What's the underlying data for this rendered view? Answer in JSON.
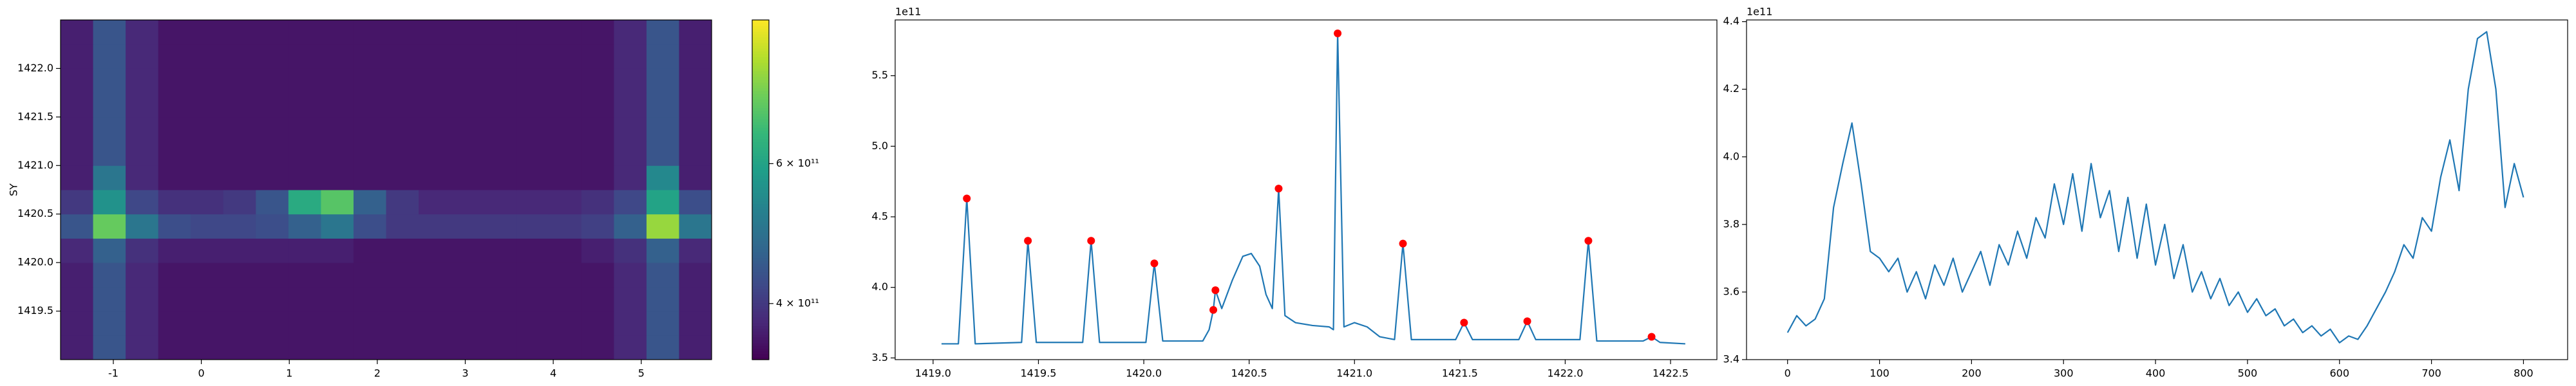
{
  "chart_data": [
    {
      "type": "heatmap",
      "ylabel": "SY",
      "cmap": "viridis",
      "color_scale": "log",
      "clim": [
        340000000000.0,
        910000000000.0
      ],
      "cticks": [
        {
          "value": 400000000000.0,
          "label": "4 × 10¹¹"
        },
        {
          "value": 600000000000.0,
          "label": "6 × 10¹¹"
        }
      ],
      "xlim": [
        -1.6,
        5.8
      ],
      "ylim": [
        1419.0,
        1422.5
      ],
      "xticks": [
        -1,
        0,
        1,
        2,
        3,
        4,
        5
      ],
      "yticks": [
        1419.5,
        {
          "value": 1420,
          "label": "1420.0"
        },
        1420.5,
        {
          "value": 1421,
          "label": "1421.0"
        },
        1421.5,
        {
          "value": 1422,
          "label": "1422.0"
        }
      ],
      "x": [
        -1.415,
        -1.045,
        -0.675,
        -0.305,
        0.065,
        0.435,
        0.805,
        1.175,
        1.545,
        1.915,
        2.285,
        2.655,
        3.025,
        3.395,
        3.765,
        4.135,
        4.505,
        4.875,
        5.245,
        5.615
      ],
      "y": [
        1419.125,
        1419.375,
        1419.625,
        1419.875,
        1420.125,
        1420.375,
        1420.625,
        1420.875,
        1421.125,
        1421.375,
        1421.625,
        1421.875,
        1422.125,
        1422.375
      ],
      "z": [
        [
          370000000000.0,
          440000000000.0,
          380000000000.0,
          360000000000.0,
          360000000000.0,
          360000000000.0,
          360000000000.0,
          360000000000.0,
          360000000000.0,
          360000000000.0,
          360000000000.0,
          360000000000.0,
          360000000000.0,
          360000000000.0,
          360000000000.0,
          360000000000.0,
          360000000000.0,
          380000000000.0,
          440000000000.0,
          370000000000.0
        ],
        [
          370000000000.0,
          440000000000.0,
          380000000000.0,
          360000000000.0,
          360000000000.0,
          360000000000.0,
          360000000000.0,
          360000000000.0,
          360000000000.0,
          360000000000.0,
          360000000000.0,
          360000000000.0,
          360000000000.0,
          360000000000.0,
          360000000000.0,
          360000000000.0,
          360000000000.0,
          380000000000.0,
          440000000000.0,
          370000000000.0
        ],
        [
          370000000000.0,
          440000000000.0,
          380000000000.0,
          360000000000.0,
          360000000000.0,
          360000000000.0,
          360000000000.0,
          360000000000.0,
          360000000000.0,
          360000000000.0,
          360000000000.0,
          360000000000.0,
          360000000000.0,
          360000000000.0,
          360000000000.0,
          360000000000.0,
          360000000000.0,
          380000000000.0,
          440000000000.0,
          370000000000.0
        ],
        [
          370000000000.0,
          440000000000.0,
          380000000000.0,
          360000000000.0,
          360000000000.0,
          360000000000.0,
          360000000000.0,
          360000000000.0,
          360000000000.0,
          360000000000.0,
          360000000000.0,
          360000000000.0,
          360000000000.0,
          360000000000.0,
          360000000000.0,
          360000000000.0,
          360000000000.0,
          380000000000.0,
          440000000000.0,
          370000000000.0
        ],
        [
          380000000000.0,
          460000000000.0,
          390000000000.0,
          370000000000.0,
          370000000000.0,
          370000000000.0,
          370000000000.0,
          370000000000.0,
          370000000000.0,
          360000000000.0,
          360000000000.0,
          360000000000.0,
          360000000000.0,
          360000000000.0,
          360000000000.0,
          360000000000.0,
          370000000000.0,
          390000000000.0,
          460000000000.0,
          380000000000.0
        ],
        [
          440000000000.0,
          720000000000.0,
          500000000000.0,
          430000000000.0,
          420000000000.0,
          420000000000.0,
          430000000000.0,
          460000000000.0,
          500000000000.0,
          430000000000.0,
          400000000000.0,
          400000000000.0,
          400000000000.0,
          400000000000.0,
          400000000000.0,
          400000000000.0,
          410000000000.0,
          460000000000.0,
          780000000000.0,
          500000000000.0
        ],
        [
          400000000000.0,
          560000000000.0,
          420000000000.0,
          390000000000.0,
          390000000000.0,
          400000000000.0,
          440000000000.0,
          620000000000.0,
          700000000000.0,
          460000000000.0,
          400000000000.0,
          380000000000.0,
          380000000000.0,
          380000000000.0,
          380000000000.0,
          380000000000.0,
          390000000000.0,
          420000000000.0,
          600000000000.0,
          430000000000.0
        ],
        [
          370000000000.0,
          500000000000.0,
          380000000000.0,
          360000000000.0,
          360000000000.0,
          360000000000.0,
          360000000000.0,
          360000000000.0,
          360000000000.0,
          360000000000.0,
          360000000000.0,
          360000000000.0,
          360000000000.0,
          360000000000.0,
          360000000000.0,
          360000000000.0,
          360000000000.0,
          380000000000.0,
          540000000000.0,
          370000000000.0
        ],
        [
          370000000000.0,
          440000000000.0,
          380000000000.0,
          360000000000.0,
          360000000000.0,
          360000000000.0,
          360000000000.0,
          360000000000.0,
          360000000000.0,
          360000000000.0,
          360000000000.0,
          360000000000.0,
          360000000000.0,
          360000000000.0,
          360000000000.0,
          360000000000.0,
          360000000000.0,
          380000000000.0,
          440000000000.0,
          370000000000.0
        ],
        [
          370000000000.0,
          440000000000.0,
          380000000000.0,
          360000000000.0,
          360000000000.0,
          360000000000.0,
          360000000000.0,
          360000000000.0,
          360000000000.0,
          360000000000.0,
          360000000000.0,
          360000000000.0,
          360000000000.0,
          360000000000.0,
          360000000000.0,
          360000000000.0,
          360000000000.0,
          380000000000.0,
          440000000000.0,
          370000000000.0
        ],
        [
          370000000000.0,
          440000000000.0,
          380000000000.0,
          360000000000.0,
          360000000000.0,
          360000000000.0,
          360000000000.0,
          360000000000.0,
          360000000000.0,
          360000000000.0,
          360000000000.0,
          360000000000.0,
          360000000000.0,
          360000000000.0,
          360000000000.0,
          360000000000.0,
          360000000000.0,
          380000000000.0,
          440000000000.0,
          370000000000.0
        ],
        [
          370000000000.0,
          440000000000.0,
          380000000000.0,
          360000000000.0,
          360000000000.0,
          360000000000.0,
          360000000000.0,
          360000000000.0,
          360000000000.0,
          360000000000.0,
          360000000000.0,
          360000000000.0,
          360000000000.0,
          360000000000.0,
          360000000000.0,
          360000000000.0,
          360000000000.0,
          380000000000.0,
          440000000000.0,
          370000000000.0
        ],
        [
          370000000000.0,
          440000000000.0,
          380000000000.0,
          360000000000.0,
          360000000000.0,
          360000000000.0,
          360000000000.0,
          360000000000.0,
          360000000000.0,
          360000000000.0,
          360000000000.0,
          360000000000.0,
          360000000000.0,
          360000000000.0,
          360000000000.0,
          360000000000.0,
          360000000000.0,
          380000000000.0,
          440000000000.0,
          370000000000.0
        ],
        [
          370000000000.0,
          440000000000.0,
          380000000000.0,
          360000000000.0,
          360000000000.0,
          360000000000.0,
          360000000000.0,
          360000000000.0,
          360000000000.0,
          360000000000.0,
          360000000000.0,
          360000000000.0,
          360000000000.0,
          360000000000.0,
          360000000000.0,
          360000000000.0,
          360000000000.0,
          380000000000.0,
          440000000000.0,
          370000000000.0
        ]
      ]
    },
    {
      "type": "line",
      "offset_label": "1e11",
      "xlim": [
        1418.82,
        1422.72
      ],
      "ylim": [
        3.488,
        5.895
      ],
      "xticks": [
        {
          "value": 1419,
          "label": "1419.0"
        },
        1419.5,
        {
          "value": 1420,
          "label": "1420.0"
        },
        1420.5,
        {
          "value": 1421,
          "label": "1421.0"
        },
        1421.5,
        {
          "value": 1422,
          "label": "1422.0"
        },
        1422.5
      ],
      "yticks": [
        3.5,
        {
          "value": 4,
          "label": "4.0"
        },
        4.5,
        {
          "value": 5,
          "label": "5.0"
        },
        5.5
      ],
      "x": [
        1419.04,
        1419.12,
        1419.16,
        1419.2,
        1419.42,
        1419.45,
        1419.49,
        1419.71,
        1419.75,
        1419.79,
        1420.01,
        1420.05,
        1420.09,
        1420.28,
        1420.31,
        1420.33,
        1420.34,
        1420.37,
        1420.42,
        1420.47,
        1420.51,
        1420.55,
        1420.58,
        1420.61,
        1420.64,
        1420.67,
        1420.72,
        1420.8,
        1420.88,
        1420.9,
        1420.92,
        1420.95,
        1421.0,
        1421.06,
        1421.12,
        1421.19,
        1421.23,
        1421.27,
        1421.48,
        1421.52,
        1421.56,
        1421.78,
        1421.82,
        1421.86,
        1422.07,
        1422.11,
        1422.15,
        1422.37,
        1422.41,
        1422.45,
        1422.57
      ],
      "series": [
        {
          "type": "line",
          "color": "#1f77b4",
          "values": [
            3.6,
            3.6,
            4.63,
            3.6,
            3.61,
            4.33,
            3.61,
            3.61,
            4.33,
            3.61,
            3.61,
            4.17,
            3.62,
            3.62,
            3.7,
            3.84,
            3.98,
            3.85,
            4.05,
            4.22,
            4.24,
            4.15,
            3.95,
            3.85,
            4.7,
            3.8,
            3.75,
            3.73,
            3.72,
            3.7,
            5.8,
            3.72,
            3.75,
            3.72,
            3.65,
            3.63,
            4.31,
            3.63,
            3.63,
            3.75,
            3.63,
            3.63,
            3.76,
            3.63,
            3.63,
            4.33,
            3.62,
            3.62,
            3.65,
            3.61,
            3.6
          ]
        },
        {
          "type": "scatter",
          "color": "#ff0000",
          "x": [
            1419.16,
            1419.45,
            1419.75,
            1420.05,
            1420.33,
            1420.34,
            1420.64,
            1420.92,
            1421.23,
            1421.52,
            1421.82,
            1422.11,
            1422.41
          ],
          "values": [
            4.63,
            4.33,
            4.33,
            4.17,
            3.84,
            3.98,
            4.7,
            5.8,
            4.31,
            3.75,
            3.76,
            4.33,
            3.65
          ]
        }
      ]
    },
    {
      "type": "line",
      "offset_label": "1e11",
      "xlim": [
        -44.6,
        848
      ],
      "ylim": [
        3.4,
        4.405
      ],
      "xticks": [
        0,
        100,
        200,
        300,
        400,
        500,
        600,
        700,
        800
      ],
      "yticks": [
        3.4,
        3.6,
        3.8,
        {
          "value": 4,
          "label": "4.0"
        },
        4.2,
        4.4
      ],
      "x": [
        0,
        10,
        20,
        30,
        40,
        50,
        60,
        70,
        80,
        90,
        100,
        110,
        120,
        130,
        140,
        150,
        160,
        170,
        180,
        190,
        200,
        210,
        220,
        230,
        240,
        250,
        260,
        270,
        280,
        290,
        300,
        310,
        320,
        330,
        340,
        350,
        360,
        370,
        380,
        390,
        400,
        410,
        420,
        430,
        440,
        450,
        460,
        470,
        480,
        490,
        500,
        510,
        520,
        530,
        540,
        550,
        560,
        570,
        580,
        590,
        600,
        610,
        620,
        630,
        640,
        650,
        660,
        670,
        680,
        690,
        700,
        710,
        720,
        730,
        740,
        750,
        760,
        770,
        780,
        790,
        800
      ],
      "series": [
        {
          "type": "line",
          "color": "#1f77b4",
          "values": [
            3.48,
            3.53,
            3.5,
            3.52,
            3.58,
            3.85,
            3.98,
            4.1,
            3.92,
            3.72,
            3.7,
            3.66,
            3.7,
            3.6,
            3.66,
            3.58,
            3.68,
            3.62,
            3.7,
            3.6,
            3.66,
            3.72,
            3.62,
            3.74,
            3.68,
            3.78,
            3.7,
            3.82,
            3.76,
            3.92,
            3.8,
            3.95,
            3.78,
            3.98,
            3.82,
            3.9,
            3.72,
            3.88,
            3.7,
            3.86,
            3.68,
            3.8,
            3.64,
            3.74,
            3.6,
            3.66,
            3.58,
            3.64,
            3.56,
            3.6,
            3.54,
            3.58,
            3.53,
            3.55,
            3.5,
            3.52,
            3.48,
            3.5,
            3.47,
            3.49,
            3.45,
            3.47,
            3.46,
            3.5,
            3.55,
            3.6,
            3.66,
            3.74,
            3.7,
            3.82,
            3.78,
            3.94,
            4.05,
            3.9,
            4.2,
            4.35,
            4.37,
            4.2,
            3.85,
            3.98,
            3.88
          ]
        }
      ]
    }
  ]
}
